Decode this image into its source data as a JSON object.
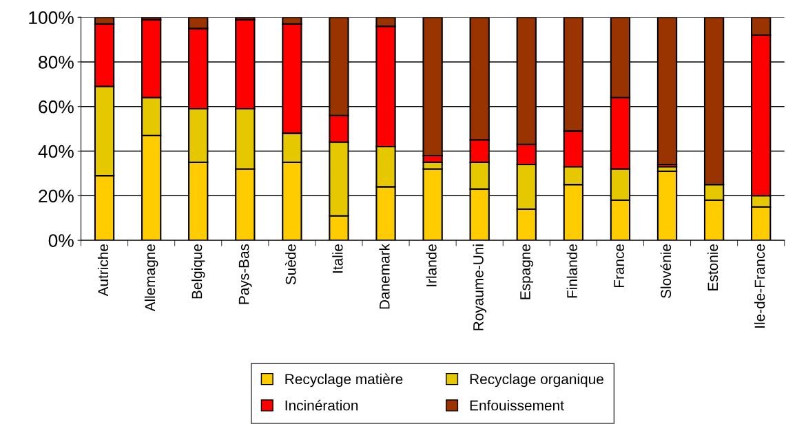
{
  "chart_data": {
    "type": "bar",
    "stacked": true,
    "categories": [
      "Autriche",
      "Allemagne",
      "Belgique",
      "Pays-Bas",
      "Suède",
      "Italie",
      "Danemark",
      "Irlande",
      "Royaume-Uni",
      "Espagne",
      "Finlande",
      "France",
      "Slovénie",
      "Estonie",
      "Ile-de-France"
    ],
    "series": [
      {
        "name": "Recyclage matière",
        "color": "#ffcc00",
        "values": [
          29,
          47,
          35,
          32,
          35,
          11,
          24,
          32,
          23,
          14,
          25,
          18,
          31,
          18,
          15
        ]
      },
      {
        "name": "Recyclage organique",
        "color": "#e6c800",
        "values": [
          40,
          17,
          24,
          27,
          13,
          33,
          18,
          3,
          12,
          20,
          8,
          14,
          2,
          7,
          5
        ]
      },
      {
        "name": "Incinération",
        "color": "#ff0000",
        "values": [
          28,
          35,
          36,
          40,
          49,
          12,
          54,
          3,
          10,
          9,
          16,
          32,
          1,
          null,
          72
        ]
      },
      {
        "name": "Enfouissement",
        "color": "#993300",
        "values": [
          3,
          1,
          5,
          1,
          3,
          44,
          4,
          62,
          55,
          57,
          51,
          36,
          66,
          75,
          8
        ]
      }
    ],
    "ylim": [
      0,
      100
    ],
    "yticks": [
      {
        "value": 0,
        "label": "0%"
      },
      {
        "value": 20,
        "label": "20%"
      },
      {
        "value": 40,
        "label": "40%"
      },
      {
        "value": 60,
        "label": "60%"
      },
      {
        "value": 80,
        "label": "80%"
      },
      {
        "value": 100,
        "label": "100%"
      }
    ],
    "grid": "y",
    "legend": "bottom"
  }
}
